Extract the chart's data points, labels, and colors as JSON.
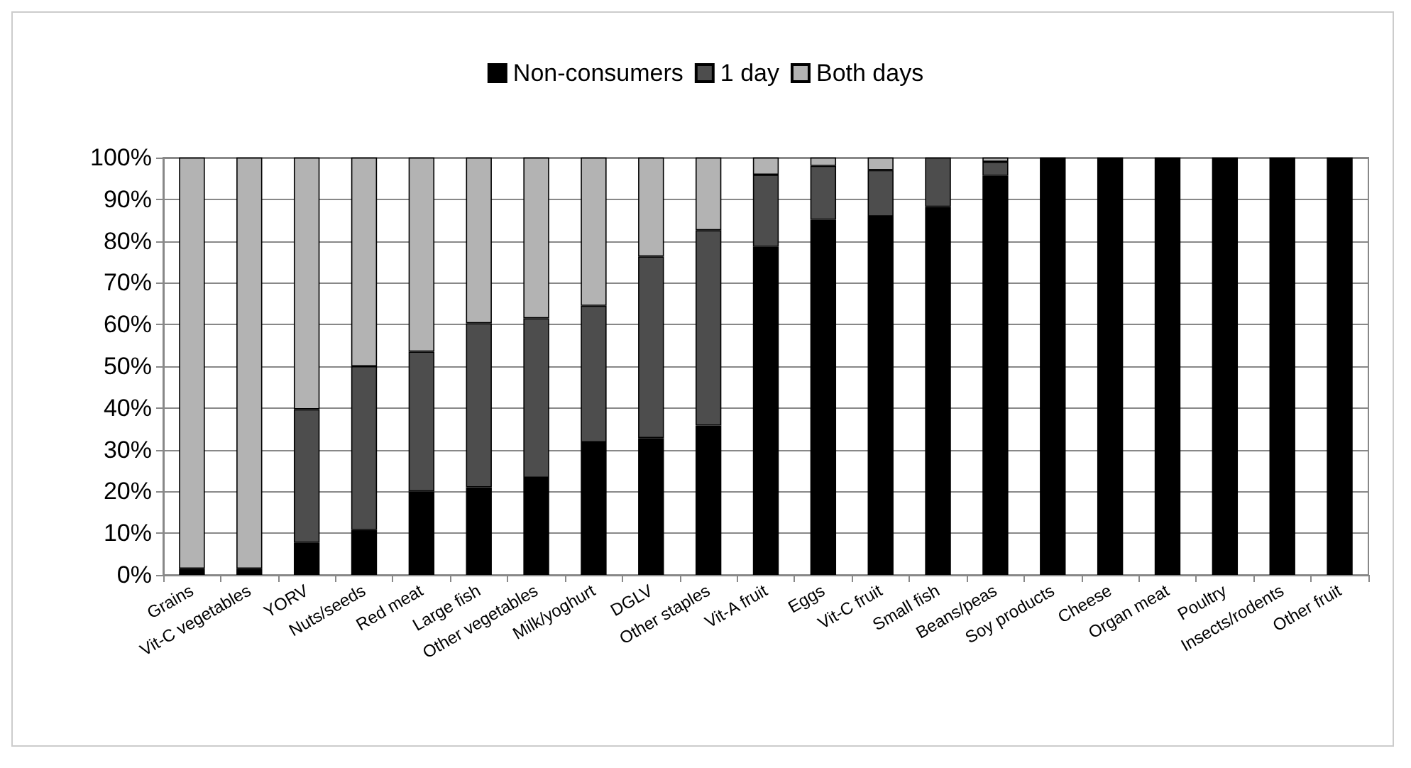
{
  "chart_data": {
    "type": "bar",
    "stacked": true,
    "categories": [
      "Grains",
      "Vit-C vegetables",
      "YORV",
      "Nuts/seeds",
      "Red meat",
      "Large fish",
      "Other vegetables",
      "Milk/yoghurt",
      "DGLV",
      "Other staples",
      "Vit-A fruit",
      "Eggs",
      "Vit-C fruit",
      "Small fish",
      "Beans/peas",
      "Soy products",
      "Cheese",
      "Organ meat",
      "Poultry",
      "Insects/rodents",
      "Other fruit"
    ],
    "series": [
      {
        "name": "Non-consumers",
        "color": "#000000",
        "values": [
          1.5,
          1.5,
          7.7,
          10.8,
          20,
          21,
          23.3,
          31.8,
          32.8,
          35.8,
          78.6,
          85.1,
          85.9,
          88.2,
          95.6,
          100,
          100,
          100,
          100,
          100,
          100
        ]
      },
      {
        "name": "1 day",
        "color": "#4d4d4d",
        "values": [
          0,
          0,
          32,
          39.2,
          33.5,
          39.3,
          38.2,
          32.7,
          43.5,
          46.8,
          17.3,
          12.9,
          11.1,
          11.8,
          3.4,
          0,
          0,
          0,
          0,
          0,
          0
        ]
      },
      {
        "name": "Both days",
        "color": "#b3b3b3",
        "values": [
          98.5,
          98.5,
          60.3,
          50,
          46.5,
          39.7,
          38.5,
          35.5,
          23.7,
          17.4,
          4.1,
          2,
          3,
          0,
          1,
          0,
          0,
          0,
          0,
          0,
          0
        ]
      }
    ],
    "ylim": [
      0,
      100
    ],
    "yticks": [
      {
        "value": 0,
        "label": "0%"
      },
      {
        "value": 10,
        "label": "10%"
      },
      {
        "value": 20,
        "label": "20%"
      },
      {
        "value": 30,
        "label": "30%"
      },
      {
        "value": 40,
        "label": "40%"
      },
      {
        "value": 50,
        "label": "50%"
      },
      {
        "value": 60,
        "label": "60%"
      },
      {
        "value": 70,
        "label": "70%"
      },
      {
        "value": 80,
        "label": "80%"
      },
      {
        "value": 90,
        "label": "90%"
      },
      {
        "value": 100,
        "label": "100%"
      }
    ],
    "grid": "y",
    "legend": "top"
  }
}
